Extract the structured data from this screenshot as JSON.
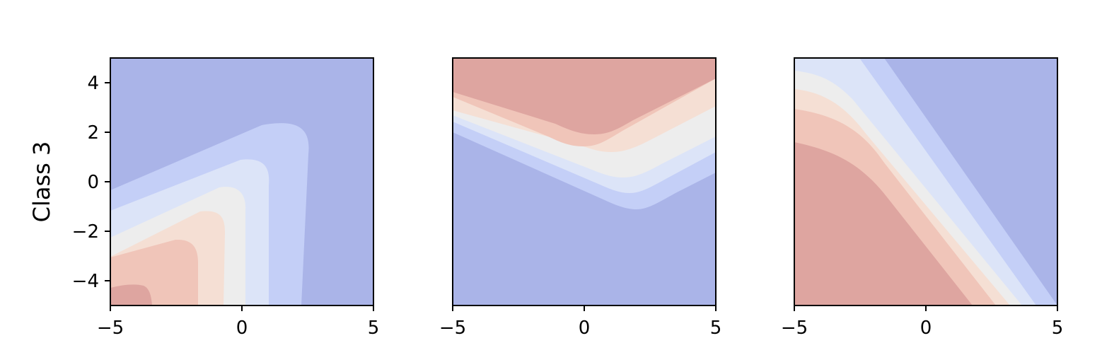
{
  "chart_data": [
    {
      "type": "contour",
      "panel": 1,
      "ylabel": "Class 3",
      "xlim": [
        -5,
        5
      ],
      "ylim": [
        -5,
        5
      ],
      "xticks": [
        -5,
        0,
        5
      ],
      "yticks": [
        -4,
        -2,
        0,
        2,
        4
      ],
      "colormap": "coolwarm",
      "levels": [
        {
          "level": 1,
          "color": "#aab4e8"
        },
        {
          "level": 2,
          "color": "#c4cff7"
        },
        {
          "level": 3,
          "color": "#dce4f8"
        },
        {
          "level": 4,
          "color": "#ededed"
        },
        {
          "level": 5,
          "color": "#f5dfd4"
        },
        {
          "level": 6,
          "color": "#f0c5b9"
        },
        {
          "level": 7,
          "color": "#dea5a0"
        }
      ]
    },
    {
      "type": "contour",
      "panel": 2,
      "xlim": [
        -5,
        5
      ],
      "ylim": [
        -5,
        5
      ],
      "xticks": [
        -5,
        0,
        5
      ],
      "colormap": "coolwarm",
      "levels": [
        {
          "level": 1,
          "color": "#aab4e8"
        },
        {
          "level": 2,
          "color": "#c4cff7"
        },
        {
          "level": 3,
          "color": "#dce4f8"
        },
        {
          "level": 4,
          "color": "#ededed"
        },
        {
          "level": 5,
          "color": "#f5dfd4"
        },
        {
          "level": 6,
          "color": "#f0c5b9"
        },
        {
          "level": 7,
          "color": "#dea5a0"
        }
      ]
    },
    {
      "type": "contour",
      "panel": 3,
      "xlim": [
        -5,
        5
      ],
      "ylim": [
        -5,
        5
      ],
      "xticks": [
        -5,
        0,
        5
      ],
      "colormap": "coolwarm",
      "levels": [
        {
          "level": 1,
          "color": "#aab4e8"
        },
        {
          "level": 2,
          "color": "#c4cff7"
        },
        {
          "level": 3,
          "color": "#dce4f8"
        },
        {
          "level": 4,
          "color": "#ededed"
        },
        {
          "level": 5,
          "color": "#f5dfd4"
        },
        {
          "level": 6,
          "color": "#f0c5b9"
        },
        {
          "level": 7,
          "color": "#dea5a0"
        }
      ]
    }
  ]
}
